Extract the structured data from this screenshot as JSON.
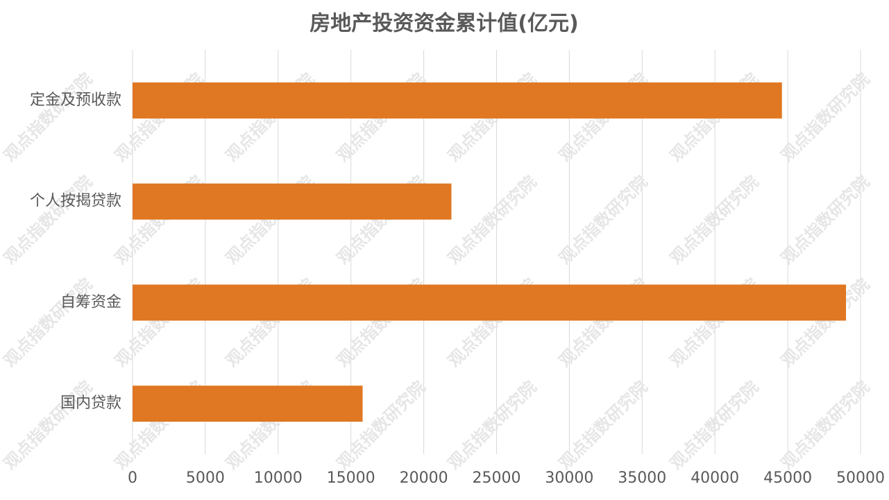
{
  "chart_data": {
    "type": "bar",
    "orientation": "horizontal",
    "title": "房地产投资资金累计值(亿元)",
    "categories": [
      "定金及预收款",
      "个人按揭贷款",
      "自筹资金",
      "国内贷款"
    ],
    "values": [
      44600,
      21900,
      49000,
      15800
    ],
    "color": "#e07722",
    "xlim": [
      0,
      50000
    ],
    "xticks": [
      0,
      5000,
      10000,
      15000,
      20000,
      25000,
      30000,
      35000,
      40000,
      45000,
      50000
    ],
    "grid": true,
    "watermark": "观点指数研究院"
  }
}
